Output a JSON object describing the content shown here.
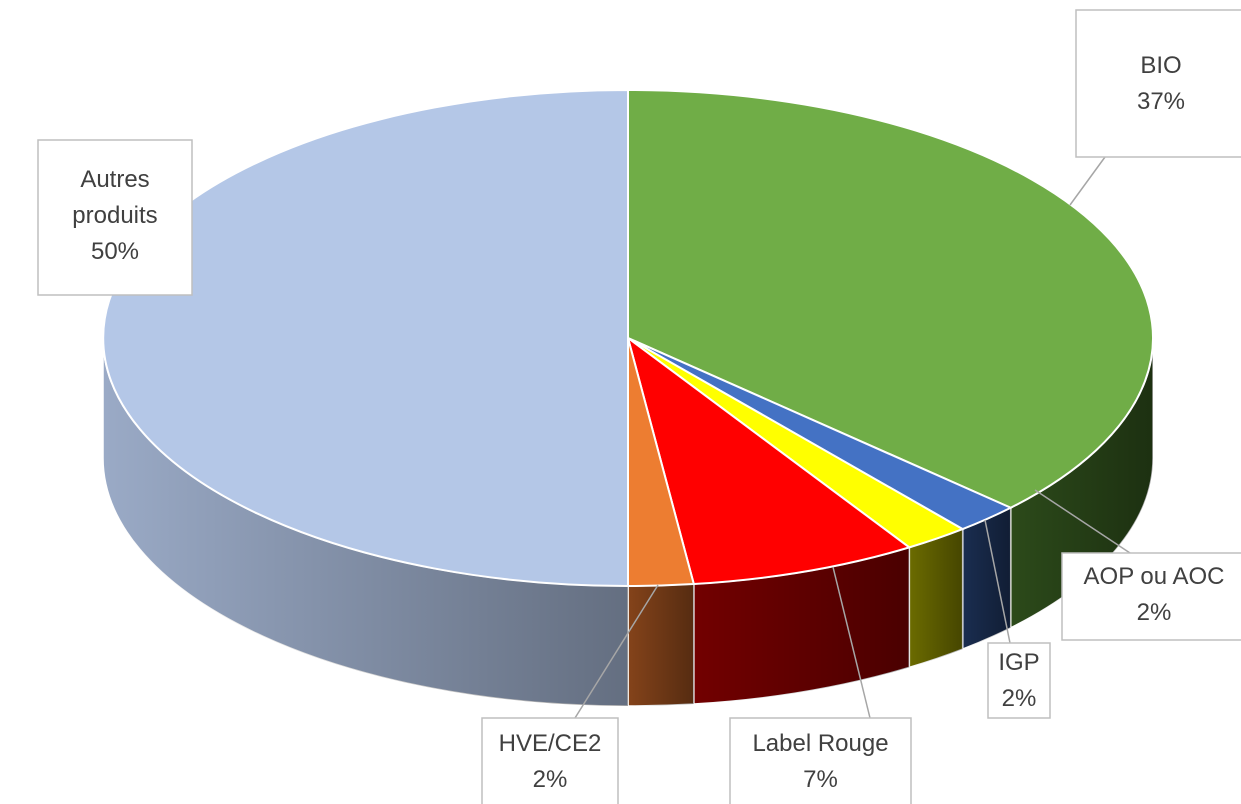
{
  "chart_data": {
    "type": "pie3d",
    "categories": [
      "BIO",
      "AOP ou AOC",
      "IGP",
      "Label Rouge",
      "HVE/CE2",
      "Autres produits"
    ],
    "values": [
      37,
      2,
      2,
      7,
      2,
      50
    ],
    "value_labels": [
      "37%",
      "2%",
      "2%",
      "7%",
      "2%",
      "50%"
    ],
    "colors": [
      "#70ad47",
      "#4472c4",
      "#ffff00",
      "#ff0000",
      "#ed7d31",
      "#b4c7e7"
    ],
    "side_colors": [
      "#2c4a1a",
      "#1a2d50",
      "#6b6b00",
      "#720000",
      "#84431a",
      "#9aaac6"
    ]
  }
}
